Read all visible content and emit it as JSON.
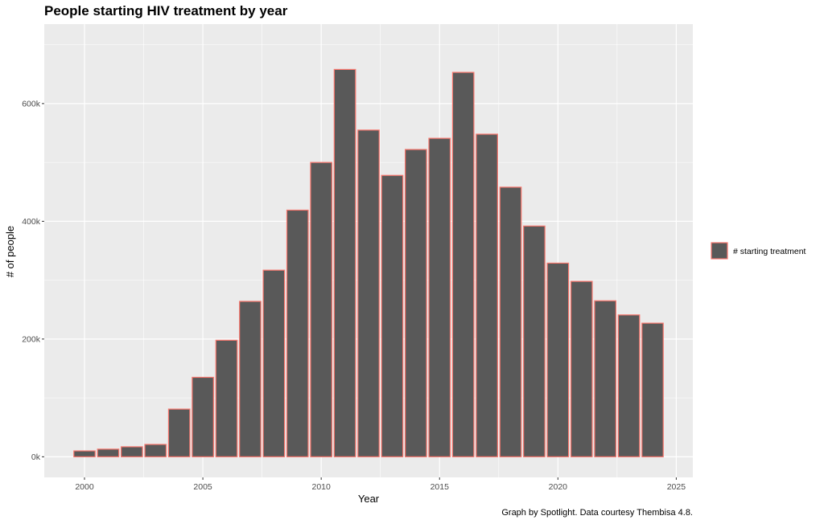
{
  "chart_data": {
    "type": "bar",
    "title": "People starting HIV treatment by year",
    "xlabel": "Year",
    "ylabel": "# of people",
    "caption": "Graph by Spotlight. Data courtesy Thembisa 4.8.",
    "x": [
      2000,
      2001,
      2002,
      2003,
      2004,
      2005,
      2006,
      2007,
      2008,
      2009,
      2010,
      2011,
      2012,
      2013,
      2014,
      2015,
      2016,
      2017,
      2018,
      2019,
      2020,
      2021,
      2022,
      2023,
      2024
    ],
    "values": [
      10000,
      13000,
      17000,
      21000,
      81000,
      135000,
      198000,
      264000,
      317000,
      419000,
      500000,
      658000,
      555000,
      478000,
      522000,
      541000,
      653000,
      548000,
      458000,
      392000,
      329000,
      298000,
      265000,
      241000,
      227000
    ],
    "xlim": [
      1998.3,
      2025.7
    ],
    "ylim": [
      -35000,
      735000
    ],
    "x_ticks": [
      2000,
      2005,
      2010,
      2015,
      2020,
      2025
    ],
    "x_tick_labels": [
      "2000",
      "2005",
      "2010",
      "2015",
      "2020",
      "2025"
    ],
    "y_ticks": [
      0,
      200000,
      400000,
      600000
    ],
    "y_tick_labels": [
      "0k",
      "200k",
      "400k",
      "600k"
    ],
    "legend": {
      "position": "right",
      "entries": [
        "# starting treatment"
      ]
    },
    "grid": true,
    "colors": {
      "bar_fill": "#595959",
      "bar_outline": "#f8766d",
      "panel": "#ebebeb",
      "grid": "#ffffff"
    }
  }
}
